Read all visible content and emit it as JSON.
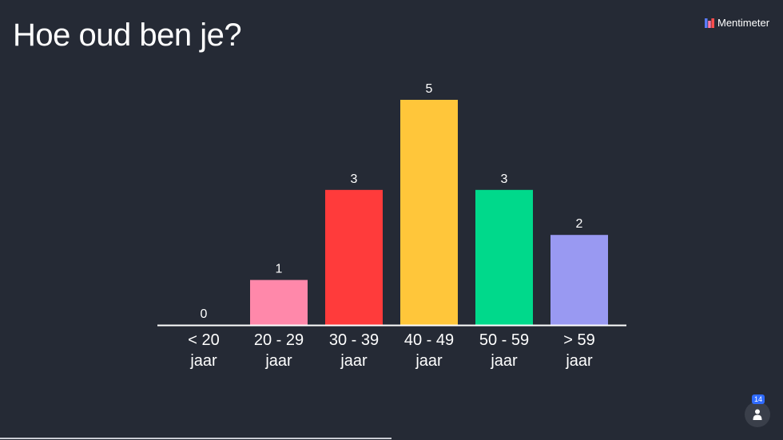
{
  "title": "Hoe oud ben je?",
  "brand": {
    "name": "Mentimeter",
    "icon": "mentimeter-logo-icon"
  },
  "participants": {
    "count": "14",
    "icon": "person-icon"
  },
  "chart_data": {
    "type": "bar",
    "categories": [
      [
        "< 20",
        "jaar"
      ],
      [
        "20 - 29",
        "jaar"
      ],
      [
        "30 - 39",
        "jaar"
      ],
      [
        "40 - 49",
        "jaar"
      ],
      [
        "50 - 59",
        "jaar"
      ],
      [
        "> 59",
        "jaar"
      ]
    ],
    "values": [
      0,
      1,
      3,
      5,
      3,
      2
    ],
    "value_labels": [
      "0",
      "1",
      "3",
      "5",
      "3",
      "2"
    ],
    "colors": [
      "#ff88aa",
      "#ff88aa",
      "#ff3b3b",
      "#ffc63a",
      "#00d98b",
      "#9999f2"
    ],
    "axis_color": "#ffffff",
    "ylim": [
      0,
      5
    ],
    "grid": false,
    "title": "",
    "xlabel": "",
    "ylabel": ""
  }
}
